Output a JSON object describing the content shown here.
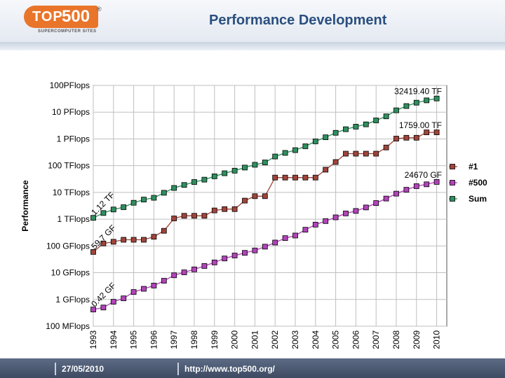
{
  "header": {
    "logo_top": "TOP",
    "logo_500": "500",
    "logo_sub": "SUPERCOMPUTER SITES",
    "logo_reg": "®",
    "title": "Performance Development"
  },
  "footer": {
    "date": "27/05/2010",
    "url": "http://www.top500.org/"
  },
  "colors": {
    "sum": "#2f8f5f",
    "number1": "#a0443a",
    "number500": "#b144b8",
    "grid": "#bfbfbf"
  },
  "chart_data": {
    "type": "line",
    "title": "Performance Development",
    "ylabel": "Performance",
    "xlabel": "",
    "yscale": "log",
    "y_unit": "GFlops",
    "ylim": [
      0.1,
      100000000
    ],
    "xlim": [
      1993.0,
      2010.5
    ],
    "ytick_values": [
      0.1,
      1,
      10,
      100,
      1000,
      10000,
      100000,
      1000000,
      10000000,
      100000000
    ],
    "ytick_labels": [
      "100 MFlops",
      "1 GFlops",
      "10 GFlops",
      "100 GFlops",
      "1 TFlops",
      "10 TFlops",
      "100 TFlops",
      "1 PFlops",
      "10 PFlops",
      "100PFlops"
    ],
    "xtick_labels": [
      "1993",
      "1994",
      "1995",
      "1996",
      "1997",
      "1998",
      "1999",
      "2000",
      "2001",
      "2002",
      "2003",
      "2004",
      "2005",
      "2006",
      "2007",
      "2008",
      "2009",
      "2010"
    ],
    "x": [
      1993.0,
      1993.5,
      1994.0,
      1994.5,
      1995.0,
      1995.5,
      1996.0,
      1996.5,
      1997.0,
      1997.5,
      1998.0,
      1998.5,
      1999.0,
      1999.5,
      2000.0,
      2000.5,
      2001.0,
      2001.5,
      2002.0,
      2002.5,
      2003.0,
      2003.5,
      2004.0,
      2004.5,
      2005.0,
      2005.5,
      2006.0,
      2006.5,
      2007.0,
      2007.5,
      2008.0,
      2008.5,
      2009.0,
      2009.5,
      2010.0
    ],
    "legend": [
      "#1",
      "#500",
      "Sum"
    ],
    "legend_position": "right",
    "series": [
      {
        "name": "Sum",
        "color": "#2f8f5f",
        "values": [
          1120,
          1700,
          2300,
          2800,
          4100,
          5400,
          6300,
          9700,
          14700,
          19000,
          24500,
          30000,
          40000,
          52000,
          65000,
          85000,
          108000,
          132000,
          220000,
          300000,
          380000,
          530000,
          810000,
          1150000,
          1690000,
          2300000,
          2870000,
          3500000,
          4920000,
          6970000,
          11700000,
          16900000,
          22600000,
          27600000,
          32419400
        ]
      },
      {
        "name": "#1",
        "color": "#a0443a",
        "values": [
          59.7,
          124,
          143,
          170,
          170,
          170,
          220,
          368,
          1068,
          1338,
          1338,
          1338,
          2121,
          2379,
          2379,
          4938,
          7226,
          7226,
          35860,
          35860,
          35860,
          35860,
          35860,
          70720,
          136800,
          280600,
          280600,
          280600,
          280600,
          478200,
          1026000,
          1105000,
          1105000,
          1759000,
          1759000
        ]
      },
      {
        "name": "#500",
        "color": "#b144b8",
        "values": [
          0.42,
          0.5,
          0.82,
          1.1,
          1.9,
          2.5,
          3.3,
          5.0,
          8.0,
          10.3,
          13.3,
          17.8,
          24.2,
          34,
          43.8,
          55.1,
          67.8,
          93.9,
          134,
          196,
          245,
          403,
          625,
          850,
          1170,
          1640,
          2030,
          2740,
          4000,
          5900,
          9000,
          12600,
          17100,
          20100,
          24670
        ]
      }
    ],
    "annotations": [
      {
        "series": "Sum",
        "text": "32419.40 TF",
        "at": "end"
      },
      {
        "series": "#1",
        "text": "1759.00 TF",
        "at": "end"
      },
      {
        "series": "#500",
        "text": "24670 GF",
        "at": "end"
      },
      {
        "series": "Sum",
        "text": "1.12 TF",
        "at": "start"
      },
      {
        "series": "#1",
        "text": "59.7 GF",
        "at": "start"
      },
      {
        "series": "#500",
        "text": "0.42 GF",
        "at": "start"
      }
    ]
  }
}
